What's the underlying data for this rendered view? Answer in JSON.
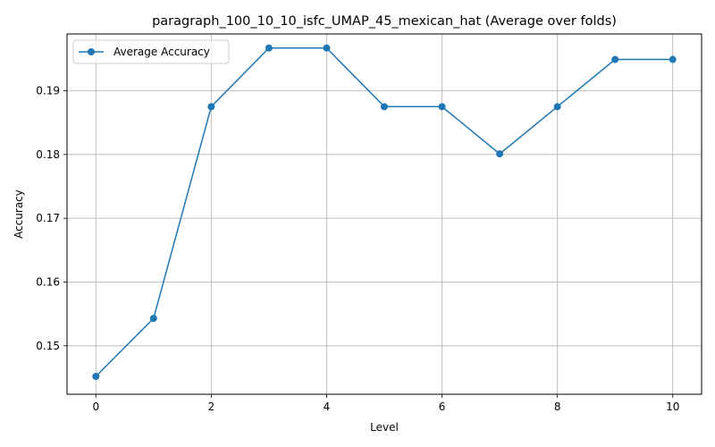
{
  "chart_data": {
    "type": "line",
    "title": "paragraph_100_10_10_isfc_UMAP_45_mexican_hat (Average over folds)",
    "xlabel": "Level",
    "ylabel": "Accuracy",
    "xlim": [
      -0.5,
      10.5
    ],
    "ylim": [
      0.1424,
      0.1989
    ],
    "xticks": [
      0,
      2,
      4,
      6,
      8,
      10
    ],
    "xtick_labels": [
      "0",
      "2",
      "4",
      "6",
      "8",
      "10"
    ],
    "yticks": [
      0.15,
      0.16,
      0.17,
      0.18,
      0.19
    ],
    "ytick_labels": [
      "0.15",
      "0.16",
      "0.17",
      "0.18",
      "0.19"
    ],
    "grid": true,
    "legend_position": "top-left",
    "series": [
      {
        "name": "Average Accuracy",
        "color": "#1f77b4",
        "marker": "circle",
        "x": [
          0,
          1,
          2,
          3,
          4,
          5,
          6,
          7,
          8,
          9,
          10
        ],
        "y": [
          0.1452,
          0.1543,
          0.1875,
          0.1967,
          0.1967,
          0.1875,
          0.1875,
          0.1801,
          0.1875,
          0.1949,
          0.1949
        ]
      }
    ]
  }
}
